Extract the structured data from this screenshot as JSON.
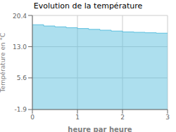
{
  "chart_data": {
    "type": "area",
    "title": "Evolution de la température",
    "xlabel": "heure par heure",
    "ylabel": "Température en °C",
    "x": [
      0,
      0.25,
      0.5,
      0.75,
      1.0,
      1.25,
      1.5,
      1.75,
      2.0,
      2.25,
      2.5,
      2.75,
      3.0
    ],
    "values": [
      18.2,
      17.9,
      17.7,
      17.5,
      17.3,
      17.1,
      16.9,
      16.7,
      16.5,
      16.4,
      16.3,
      16.2,
      16.2
    ],
    "xlim": [
      0,
      3
    ],
    "ylim": [
      -1.9,
      20.4
    ],
    "xticks": [
      0,
      1,
      2,
      3
    ],
    "yticks": [
      -1.9,
      5.6,
      {
        "value": 13.0,
        "label": "13.0"
      },
      20.4
    ],
    "color": "#5bbfde",
    "line_style": "step",
    "grid": true
  }
}
